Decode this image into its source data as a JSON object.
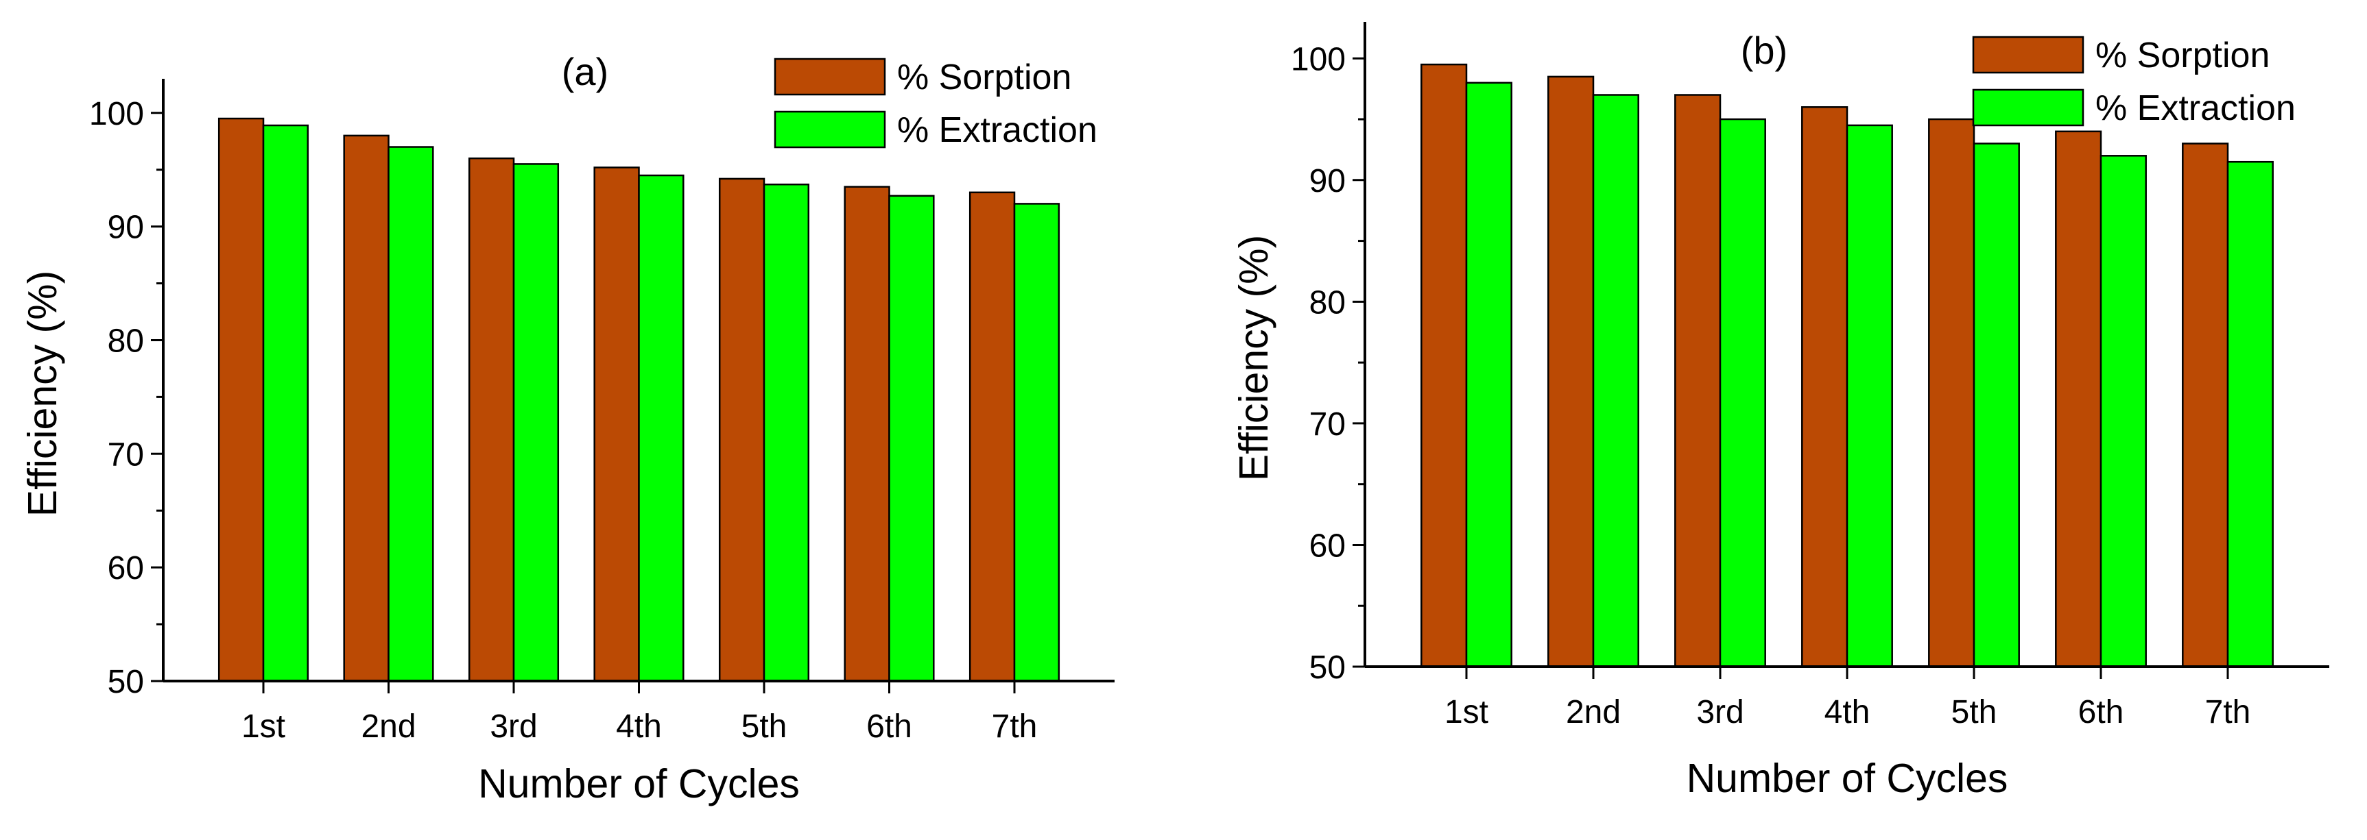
{
  "colors": {
    "sorption": "#bb4a04",
    "extraction": "#00ff00",
    "axis": "#000000",
    "background": "#ffffff"
  },
  "chart_data": [
    {
      "type": "bar",
      "panel_label": "(a)",
      "xlabel": "Number of Cycles",
      "ylabel": "Efficiency (%)",
      "ylim": [
        50,
        103
      ],
      "yticks": [
        50,
        60,
        70,
        80,
        90,
        100
      ],
      "categories": [
        "1st",
        "2nd",
        "3rd",
        "4th",
        "5th",
        "6th",
        "7th"
      ],
      "series": [
        {
          "name": "% Sorption",
          "values": [
            99.5,
            98.0,
            96.0,
            95.2,
            94.2,
            93.5,
            93.0
          ]
        },
        {
          "name": "% Extraction",
          "values": [
            98.9,
            97.0,
            95.5,
            94.5,
            93.7,
            92.7,
            92.0
          ]
        }
      ],
      "legend": "top-right",
      "grid": false
    },
    {
      "type": "bar",
      "panel_label": "(b)",
      "xlabel": "Number of Cycles",
      "ylabel": "Efficiency (%)",
      "ylim": [
        50,
        103
      ],
      "yticks": [
        50,
        60,
        70,
        80,
        90,
        100
      ],
      "categories": [
        "1st",
        "2nd",
        "3rd",
        "4th",
        "5th",
        "6th",
        "7th"
      ],
      "series": [
        {
          "name": "% Sorption",
          "values": [
            99.5,
            98.5,
            97.0,
            96.0,
            95.0,
            94.0,
            93.0
          ]
        },
        {
          "name": "% Extraction",
          "values": [
            98.0,
            97.0,
            95.0,
            94.5,
            93.0,
            92.0,
            91.5
          ]
        }
      ],
      "legend": "top-right",
      "grid": false
    }
  ]
}
